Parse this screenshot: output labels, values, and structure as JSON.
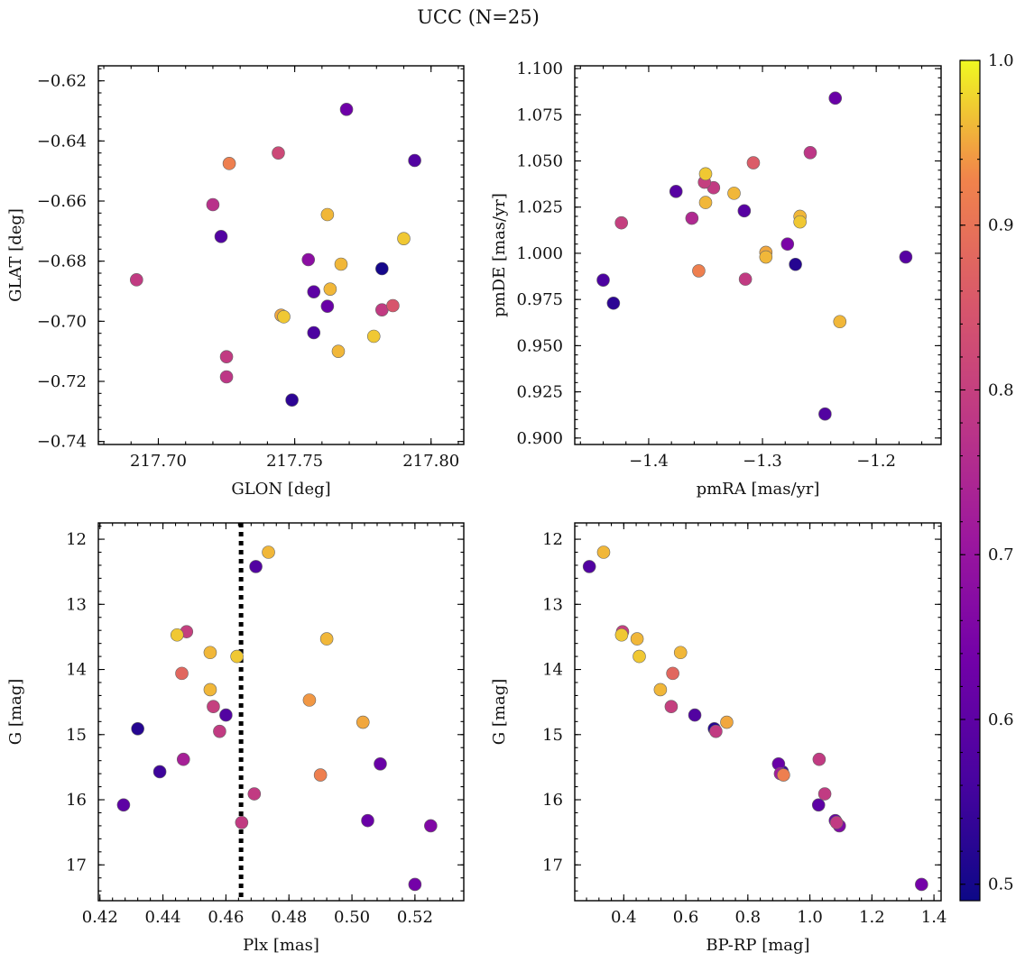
{
  "figure": {
    "title": "UCC (N=25)"
  },
  "chart_data": [
    {
      "type": "scatter",
      "name": "glon-glat",
      "xlabel": "GLON [deg]",
      "ylabel": "GLAT [deg]",
      "xlim": [
        217.678,
        217.812
      ],
      "ylim": [
        -0.741,
        -0.615
      ],
      "y_inverted": false,
      "xticks": [
        217.7,
        217.75,
        217.8
      ],
      "xtick_labels": [
        "217.70",
        "217.75",
        "217.80"
      ],
      "yticks": [
        -0.62,
        -0.64,
        -0.66,
        -0.68,
        -0.7,
        -0.72,
        -0.74
      ],
      "ytick_labels": [
        "−0.62",
        "−0.64",
        "−0.66",
        "−0.68",
        "−0.70",
        "−0.72",
        "−0.74"
      ],
      "x": [
        217.769,
        217.794,
        217.744,
        217.726,
        217.72,
        217.723,
        217.762,
        217.79,
        217.782,
        217.767,
        217.755,
        217.692,
        217.757,
        217.763,
        217.745,
        217.746,
        217.762,
        217.782,
        217.786,
        217.757,
        217.779,
        217.766,
        217.725,
        217.725,
        217.749
      ],
      "y": [
        -0.6295,
        -0.6465,
        -0.644,
        -0.6475,
        -0.6612,
        -0.6718,
        -0.6645,
        -0.6725,
        -0.6825,
        -0.681,
        -0.6795,
        -0.6862,
        -0.6902,
        -0.6893,
        -0.698,
        -0.6985,
        -0.695,
        -0.6962,
        -0.6948,
        -0.7038,
        -0.705,
        -0.71,
        -0.7118,
        -0.7185,
        -0.7262
      ],
      "probability": [
        0.63,
        0.58,
        0.82,
        0.92,
        0.77,
        0.58,
        0.96,
        0.97,
        0.5,
        0.96,
        0.68,
        0.79,
        0.6,
        0.96,
        0.95,
        0.97,
        0.62,
        0.79,
        0.85,
        0.57,
        0.97,
        0.96,
        0.79,
        0.78,
        0.53
      ]
    },
    {
      "type": "scatter",
      "name": "pmra-pmde",
      "xlabel": "pmRA [mas/yr]",
      "ylabel": "pmDE [mas/yr]",
      "xlim": [
        -1.465,
        -1.143
      ],
      "ylim": [
        0.8965,
        1.1015
      ],
      "y_inverted": false,
      "xticks": [
        -1.4,
        -1.3,
        -1.2
      ],
      "xtick_labels": [
        "−1.4",
        "−1.3",
        "−1.2"
      ],
      "yticks": [
        0.9,
        0.925,
        0.95,
        0.975,
        1.0,
        1.025,
        1.05,
        1.075,
        1.1
      ],
      "ytick_labels": [
        "0.900",
        "0.925",
        "0.950",
        "0.975",
        "1.000",
        "1.025",
        "1.050",
        "1.075",
        "1.100"
      ],
      "x": [
        -1.236,
        -1.258,
        -1.308,
        -1.35,
        -1.351,
        -1.343,
        -1.376,
        -1.325,
        -1.35,
        -1.362,
        -1.316,
        -1.424,
        -1.267,
        -1.267,
        -1.297,
        -1.278,
        -1.297,
        -1.174,
        -1.271,
        -1.356,
        -1.44,
        -1.315,
        -1.431,
        -1.232,
        -1.245
      ],
      "y": [
        1.084,
        1.0545,
        1.049,
        1.043,
        1.0385,
        1.0355,
        1.0335,
        1.0325,
        1.0275,
        1.019,
        1.023,
        1.0165,
        1.02,
        1.017,
        1.0005,
        1.005,
        0.998,
        0.998,
        0.994,
        0.9905,
        0.9855,
        0.986,
        0.973,
        0.963,
        0.913
      ],
      "probability": [
        0.62,
        0.78,
        0.86,
        0.97,
        0.8,
        0.79,
        0.59,
        0.96,
        0.96,
        0.75,
        0.59,
        0.8,
        0.96,
        0.97,
        0.95,
        0.65,
        0.96,
        0.59,
        0.52,
        0.92,
        0.57,
        0.79,
        0.53,
        0.96,
        0.58
      ]
    },
    {
      "type": "scatter",
      "name": "plx-g",
      "xlabel": "Plx [mas]",
      "ylabel": "G [mag]",
      "xlim": [
        0.4195,
        0.5355
      ],
      "ylim": [
        11.75,
        17.55
      ],
      "y_inverted": true,
      "xticks": [
        0.42,
        0.44,
        0.46,
        0.48,
        0.5,
        0.52
      ],
      "xtick_labels": [
        "0.42",
        "0.44",
        "0.46",
        "0.48",
        "0.50",
        "0.52"
      ],
      "yticks": [
        12,
        13,
        14,
        15,
        16,
        17
      ],
      "ytick_labels": [
        "12",
        "13",
        "14",
        "15",
        "16",
        "17"
      ],
      "vline_x": 0.4648,
      "x": [
        0.4735,
        0.4695,
        0.4445,
        0.4475,
        0.492,
        0.455,
        0.4635,
        0.446,
        0.455,
        0.4865,
        0.456,
        0.46,
        0.5035,
        0.458,
        0.432,
        0.4465,
        0.509,
        0.439,
        0.49,
        0.469,
        0.4275,
        0.505,
        0.465,
        0.525,
        0.52
      ],
      "y": [
        12.2,
        12.42,
        13.47,
        13.42,
        13.53,
        13.74,
        13.8,
        14.06,
        14.31,
        14.47,
        14.57,
        14.7,
        14.81,
        14.95,
        14.91,
        15.38,
        15.45,
        15.57,
        15.62,
        15.91,
        16.08,
        16.32,
        16.35,
        16.4,
        17.3
      ],
      "probability": [
        0.96,
        0.58,
        0.97,
        0.8,
        0.96,
        0.96,
        0.97,
        0.88,
        0.96,
        0.94,
        0.8,
        0.58,
        0.95,
        0.79,
        0.52,
        0.73,
        0.62,
        0.55,
        0.92,
        0.79,
        0.6,
        0.62,
        0.79,
        0.66,
        0.64
      ]
    },
    {
      "type": "scatter",
      "name": "bprp-g",
      "xlabel": "BP-RP [mag]",
      "ylabel": "G [mag]",
      "xlim": [
        0.242,
        1.423
      ],
      "ylim": [
        11.75,
        17.55
      ],
      "y_inverted": true,
      "xticks": [
        0.4,
        0.6,
        0.8,
        1.0,
        1.2,
        1.4
      ],
      "xtick_labels": [
        "0.4",
        "0.6",
        "0.8",
        "1.0",
        "1.2",
        "1.4"
      ],
      "yticks": [
        12,
        13,
        14,
        15,
        16,
        17
      ],
      "ytick_labels": [
        "12",
        "13",
        "14",
        "15",
        "16",
        "17"
      ],
      "x": [
        0.335,
        0.289,
        0.396,
        0.393,
        0.443,
        0.583,
        0.45,
        0.558,
        0.518,
        0.553,
        0.629,
        0.732,
        0.692,
        0.697,
        0.899,
        0.911,
        0.915,
        1.028,
        1.03,
        1.048,
        1.082,
        1.086,
        1.095,
        1.36,
        0.905
      ],
      "y": [
        12.2,
        12.42,
        13.42,
        13.47,
        13.53,
        13.74,
        13.8,
        14.06,
        14.31,
        14.57,
        14.7,
        14.81,
        14.91,
        14.95,
        15.45,
        15.57,
        15.62,
        16.08,
        15.38,
        15.91,
        16.32,
        16.35,
        16.4,
        17.3,
        15.6
      ],
      "probability": [
        0.96,
        0.58,
        0.8,
        0.97,
        0.96,
        0.96,
        0.97,
        0.88,
        0.96,
        0.8,
        0.58,
        0.95,
        0.52,
        0.79,
        0.62,
        0.55,
        0.92,
        0.6,
        0.79,
        0.79,
        0.62,
        0.79,
        0.66,
        0.64,
        0.72
      ]
    }
  ],
  "colorbar": {
    "colormap": "plasma",
    "range": [
      0.49,
      1.0
    ],
    "ticks": [
      0.5,
      0.6,
      0.7,
      0.8,
      0.9,
      1.0
    ],
    "tick_labels": [
      "0.5",
      "0.6",
      "0.7",
      "0.8",
      "0.9",
      "1.0"
    ]
  }
}
